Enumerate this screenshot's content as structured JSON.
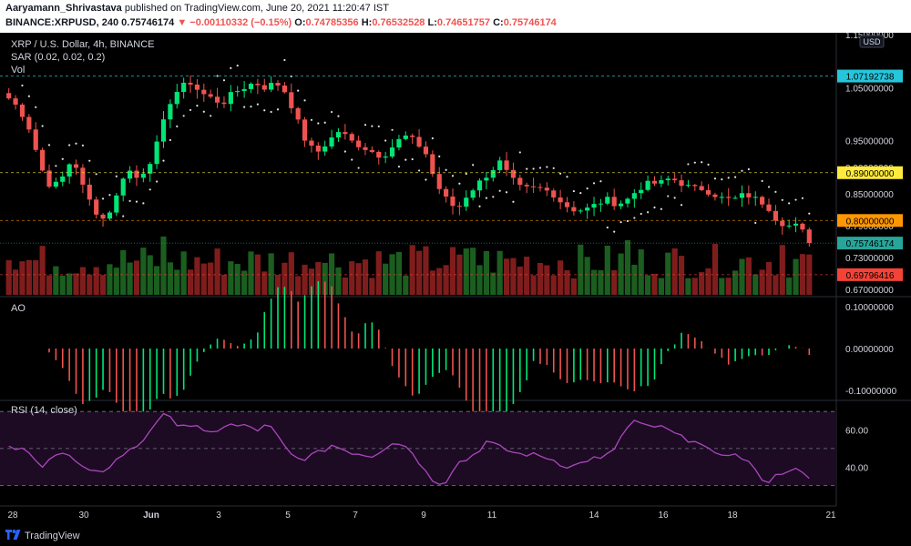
{
  "header": {
    "author": "Aaryamann_Shrivastava",
    "published": "published on TradingView.com, June 20, 2021 11:20:47 IST",
    "symbol": "BINANCE:XRPUSD, 240",
    "last": "0.75746174",
    "change": "▼ −0.00110332 (−0.15%)",
    "o_label": "O:",
    "o_value": "0.74785356",
    "h_label": "H:",
    "h_value": "0.76532528",
    "l_label": "L:",
    "l_value": "0.74651757",
    "c_label": "C:",
    "c_value": "0.75746174"
  },
  "legend": {
    "title": "XRP / U.S. Dollar, 4h, BINANCE",
    "sar": "SAR (0.02, 0.02, 0.2)",
    "vol": "Vol",
    "ao": "AO",
    "rsi": "RSI (14, close)"
  },
  "currency_badge": "USD",
  "footer": {
    "brand": "TradingView"
  },
  "colors": {
    "up": "#26a69a",
    "up_bright": "#00e676",
    "down": "#ef5350",
    "vol_up": "#1b5e20",
    "vol_down": "#7f1d1d",
    "rsi_line": "#ab47bc",
    "rsi_band": "#1c0b23",
    "label_cyan": "#26c6da",
    "label_yellow": "#ffeb3b",
    "label_orange": "#ff9800",
    "label_green": "#26a69a",
    "label_red": "#f44336"
  },
  "chart_data": [
    {
      "type": "candlestick",
      "title": "XRP / U.S. Dollar, 4h, BINANCE",
      "ylim": [
        0.66,
        1.15
      ],
      "price_ticks": [
        "1.15000000",
        "1.05000000",
        "0.95000000",
        "0.90000000",
        "0.85000000",
        "0.79000000",
        "0.73000000",
        "0.67000000"
      ],
      "price_tick_values": [
        1.15,
        1.05,
        0.95,
        0.9,
        0.85,
        0.79,
        0.73,
        0.67
      ],
      "x_ticks": [
        "28",
        "30",
        "Jun",
        "3",
        "5",
        "7",
        "9",
        "11",
        "14",
        "16",
        "18",
        "21"
      ],
      "close_path": [
        1.03,
        1.01,
        0.97,
        0.9,
        0.86,
        0.88,
        0.92,
        0.86,
        0.82,
        0.8,
        0.84,
        0.9,
        0.88,
        0.9,
        0.95,
        1.02,
        1.05,
        1.06,
        1.04,
        1.03,
        1.02,
        1.04,
        1.05,
        1.06,
        1.05,
        1.06,
        1.04,
        0.99,
        0.94,
        0.93,
        0.95,
        0.97,
        0.95,
        0.94,
        0.93,
        0.92,
        0.94,
        0.96,
        0.95,
        0.93,
        0.87,
        0.84,
        0.82,
        0.85,
        0.87,
        0.89,
        0.91,
        0.88,
        0.86,
        0.86,
        0.86,
        0.85,
        0.83,
        0.82,
        0.82,
        0.83,
        0.84,
        0.83,
        0.84,
        0.86,
        0.87,
        0.87,
        0.88,
        0.87,
        0.86,
        0.86,
        0.85,
        0.84,
        0.84,
        0.85,
        0.84,
        0.83,
        0.8,
        0.79,
        0.79,
        0.76
      ],
      "price_labels": [
        {
          "text": "1.07192738",
          "value": 1.07192738,
          "color": "label_cyan",
          "line": "dashed"
        },
        {
          "text": "0.89000000",
          "value": 0.89,
          "color": "label_yellow",
          "line": "dashed"
        },
        {
          "text": "0.80000000",
          "value": 0.8,
          "color": "label_orange",
          "line": "dashed"
        },
        {
          "text": "0.75746174",
          "value": 0.75746174,
          "color": "label_green",
          "line": "dotted"
        },
        {
          "text": "0.69796416",
          "value": 0.69796416,
          "color": "label_red",
          "line": "dashed"
        }
      ]
    },
    {
      "type": "bar",
      "title": "AO",
      "ylim": [
        -0.12,
        0.12
      ],
      "y_ticks": [
        "0.10000000",
        "0.00000000",
        "-0.10000000"
      ],
      "y_tick_values": [
        0.1,
        0.0,
        -0.1
      ]
    },
    {
      "type": "line",
      "title": "RSI (14, close)",
      "ylim": [
        20,
        75
      ],
      "y_ticks": [
        "60.00",
        "40.00"
      ],
      "y_tick_values": [
        60,
        40
      ],
      "band": [
        30,
        70
      ],
      "values": [
        50,
        50,
        47,
        40,
        46,
        48,
        45,
        40,
        36,
        38,
        42,
        47,
        50,
        55,
        64,
        68,
        64,
        63,
        62,
        57,
        60,
        63,
        62,
        62,
        60,
        63,
        55,
        47,
        44,
        46,
        48,
        52,
        50,
        48,
        47,
        46,
        50,
        54,
        52,
        47,
        38,
        32,
        32,
        42,
        44,
        48,
        54,
        51,
        49,
        47,
        47,
        46,
        45,
        42,
        40,
        42,
        45,
        44,
        48,
        57,
        65,
        62,
        62,
        61,
        58,
        55,
        55,
        50,
        46,
        48,
        46,
        44,
        36,
        32,
        36,
        39,
        38,
        33
      ]
    }
  ]
}
